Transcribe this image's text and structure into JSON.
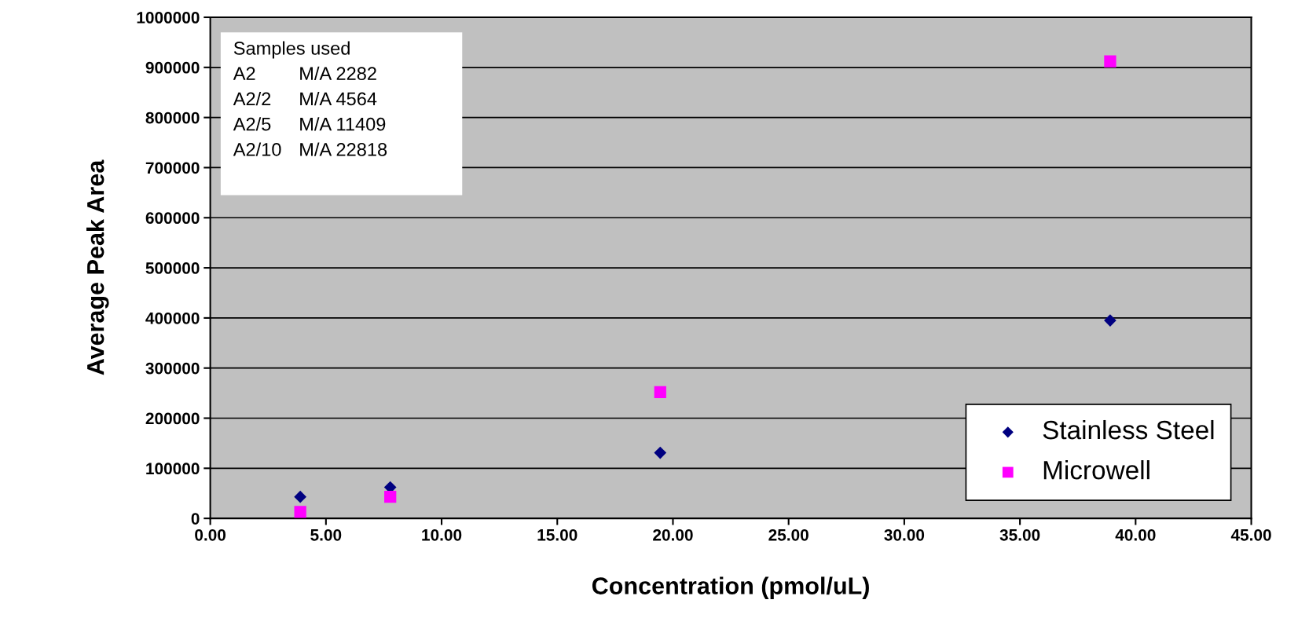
{
  "chart_data": {
    "type": "scatter",
    "xlabel": "Concentration (pmol/uL)",
    "ylabel": "Average Peak Area",
    "series": [
      {
        "name": "Stainless Steel",
        "color": "#000080",
        "marker": "diamond",
        "x": [
          3.89,
          7.78,
          19.45,
          38.9
        ],
        "values": [
          43000,
          62000,
          131000,
          395000
        ]
      },
      {
        "name": "Microwell",
        "color": "#ff00ff",
        "marker": "square",
        "x": [
          3.89,
          7.78,
          19.45,
          38.9
        ],
        "values": [
          13000,
          43000,
          252000,
          912000
        ]
      }
    ],
    "xlim": [
      0,
      45
    ],
    "xticks": [
      {
        "value": 0,
        "label": "0.00"
      },
      {
        "value": 5,
        "label": "5.00"
      },
      {
        "value": 10,
        "label": "10.00"
      },
      {
        "value": 15,
        "label": "15.00"
      },
      {
        "value": 20,
        "label": "20.00"
      },
      {
        "value": 25,
        "label": "25.00"
      },
      {
        "value": 30,
        "label": "30.00"
      },
      {
        "value": 35,
        "label": "35.00"
      },
      {
        "value": 40,
        "label": "40.00"
      },
      {
        "value": 45,
        "label": "45.00"
      }
    ],
    "ylim": [
      0,
      1000000
    ],
    "yticks": [
      0,
      100000,
      200000,
      300000,
      400000,
      500000,
      600000,
      700000,
      800000,
      900000,
      1000000
    ],
    "grid": "y",
    "legend": "bottom right",
    "annotations": [
      "Samples used",
      "A2 M/A 2282",
      "A2/2 M/A 4564",
      "A2/5 M/A 11409",
      "A2/10 M/A 22818"
    ]
  }
}
